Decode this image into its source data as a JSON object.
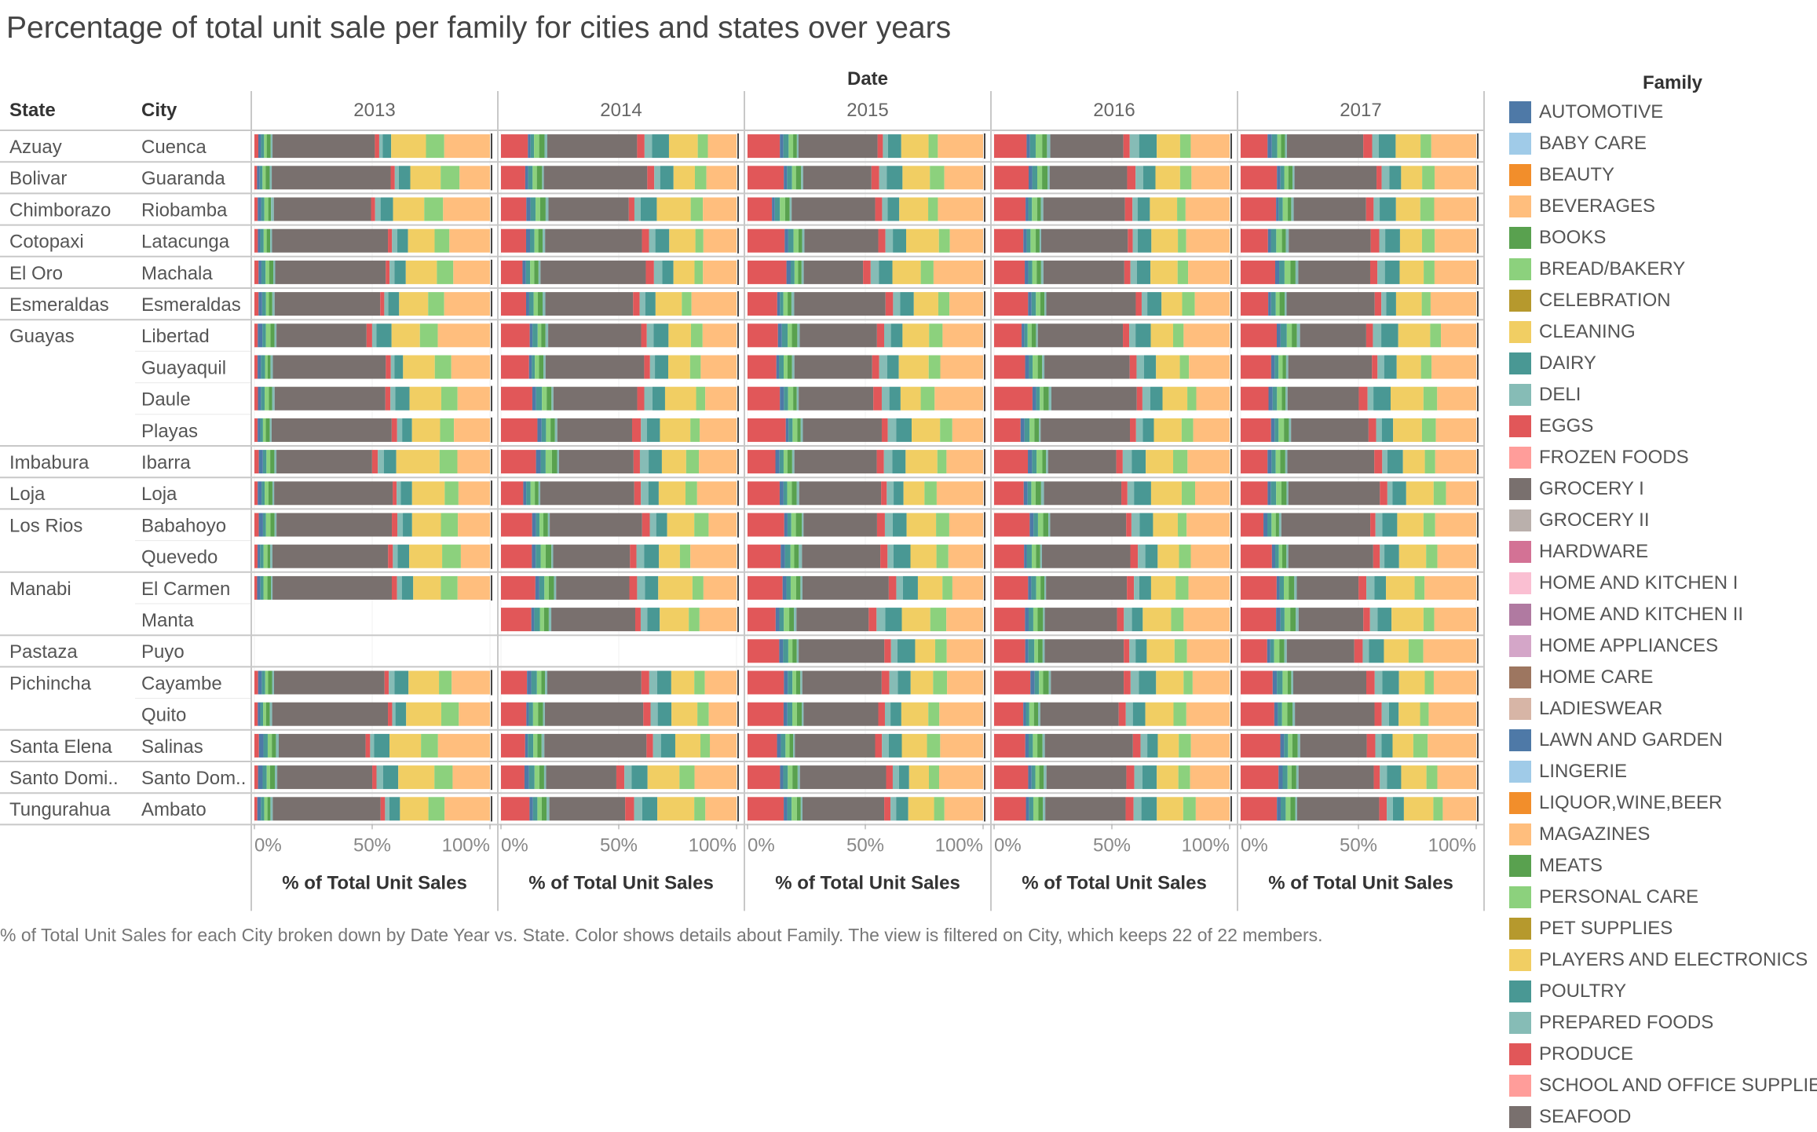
{
  "title": "Percentage of total unit sale per family for cities and states over years",
  "caption": "% of Total Unit Sales for each City broken down by Date Year vs. State.  Color shows details about Family. The view is filtered on City, which keeps 22 of 22 members.",
  "headers": {
    "column_group": "Date",
    "state": "State",
    "city": "City",
    "legend_title": "Family"
  },
  "chart_data": {
    "type": "bar",
    "stacked": "percent",
    "orientation": "horizontal",
    "title": "Percentage of total unit sale per family for cities and states over years",
    "xlabel": "% of Total Unit Sales",
    "xlim": [
      0,
      100
    ],
    "x_ticks": [
      "0%",
      "50%",
      "100%"
    ],
    "years": [
      "2013",
      "2014",
      "2015",
      "2016",
      "2017"
    ],
    "state_groups": [
      {
        "state": "Azuay",
        "cities": [
          "Cuenca"
        ]
      },
      {
        "state": "Bolivar",
        "cities": [
          "Guaranda"
        ]
      },
      {
        "state": "Chimborazo",
        "cities": [
          "Riobamba"
        ]
      },
      {
        "state": "Cotopaxi",
        "cities": [
          "Latacunga"
        ]
      },
      {
        "state": "El Oro",
        "cities": [
          "Machala"
        ]
      },
      {
        "state": "Esmeraldas",
        "cities": [
          "Esmeraldas"
        ]
      },
      {
        "state": "Guayas",
        "cities": [
          "Libertad",
          "Guayaquil",
          "Daule",
          "Playas"
        ]
      },
      {
        "state": "Imbabura",
        "cities": [
          "Ibarra"
        ]
      },
      {
        "state": "Loja",
        "cities": [
          "Loja"
        ]
      },
      {
        "state": "Los Rios",
        "cities": [
          "Babahoyo",
          "Quevedo"
        ]
      },
      {
        "state": "Manabi",
        "cities": [
          "El Carmen",
          "Manta"
        ]
      },
      {
        "state": "Pastaza",
        "cities": [
          "Puyo"
        ]
      },
      {
        "state": "Pichincha",
        "cities": [
          "Cayambe",
          "Quito"
        ]
      },
      {
        "state": "Santa Elena",
        "cities": [
          "Salinas"
        ]
      },
      {
        "state": "Santo Domi..",
        "cities": [
          "Santo Dom.."
        ]
      },
      {
        "state": "Tungurahua",
        "cities": [
          "Ambato"
        ]
      }
    ],
    "segment_families": [
      "PRODUCE",
      "AUTOMOTIVE",
      "POULTRY",
      "BREAD/BAKERY",
      "MEATS",
      "DELI",
      "GROCERY I",
      "EGGS",
      "PREPARED FOODS",
      "DAIRY",
      "CLEANING",
      "PERSONAL CARE",
      "BEVERAGES"
    ],
    "base_profile_2013": [
      1.5,
      1.5,
      1.5,
      1.5,
      1.5,
      1.0,
      46,
      2,
      2,
      5,
      14,
      7,
      17
    ],
    "base_profile_2014": [
      12,
      1.5,
      2,
      2,
      2,
      1.0,
      38,
      3,
      3,
      6,
      12,
      5,
      16
    ],
    "base_profile_2015_2017": [
      14,
      1.5,
      2,
      2,
      2,
      1.0,
      34,
      3,
      3,
      6,
      11,
      5,
      18
    ],
    "missing": [
      {
        "city": "Manta",
        "year": "2013"
      },
      {
        "city": "Puyo",
        "year": "2013"
      },
      {
        "city": "Puyo",
        "year": "2014"
      }
    ],
    "legend": [
      {
        "name": "AUTOMOTIVE",
        "color": "#4e79a7"
      },
      {
        "name": "BABY CARE",
        "color": "#a0cbe8"
      },
      {
        "name": "BEAUTY",
        "color": "#f28e2b"
      },
      {
        "name": "BEVERAGES",
        "color": "#ffbe7d"
      },
      {
        "name": "BOOKS",
        "color": "#59a14f"
      },
      {
        "name": "BREAD/BAKERY",
        "color": "#8cd17d"
      },
      {
        "name": "CELEBRATION",
        "color": "#b6992d"
      },
      {
        "name": "CLEANING",
        "color": "#f1ce63"
      },
      {
        "name": "DAIRY",
        "color": "#499894"
      },
      {
        "name": "DELI",
        "color": "#86bcb6"
      },
      {
        "name": "EGGS",
        "color": "#e15759"
      },
      {
        "name": "FROZEN FOODS",
        "color": "#ff9d9a"
      },
      {
        "name": "GROCERY I",
        "color": "#79706e"
      },
      {
        "name": "GROCERY II",
        "color": "#bab0ac"
      },
      {
        "name": "HARDWARE",
        "color": "#d37295"
      },
      {
        "name": "HOME AND KITCHEN I",
        "color": "#fabfd2"
      },
      {
        "name": "HOME AND KITCHEN II",
        "color": "#b07aa1"
      },
      {
        "name": "HOME APPLIANCES",
        "color": "#d4a6c8"
      },
      {
        "name": "HOME CARE",
        "color": "#9d7660"
      },
      {
        "name": "LADIESWEAR",
        "color": "#d7b5a6"
      },
      {
        "name": "LAWN AND GARDEN",
        "color": "#4e79a7"
      },
      {
        "name": "LINGERIE",
        "color": "#a0cbe8"
      },
      {
        "name": "LIQUOR,WINE,BEER",
        "color": "#f28e2b"
      },
      {
        "name": "MAGAZINES",
        "color": "#ffbe7d"
      },
      {
        "name": "MEATS",
        "color": "#59a14f"
      },
      {
        "name": "PERSONAL CARE",
        "color": "#8cd17d"
      },
      {
        "name": "PET SUPPLIES",
        "color": "#b6992d"
      },
      {
        "name": "PLAYERS AND ELECTRONICS",
        "color": "#f1ce63"
      },
      {
        "name": "POULTRY",
        "color": "#499894"
      },
      {
        "name": "PREPARED FOODS",
        "color": "#86bcb6"
      },
      {
        "name": "PRODUCE",
        "color": "#e15759"
      },
      {
        "name": "SCHOOL AND OFFICE SUPPLIES",
        "color": "#ff9d9a"
      },
      {
        "name": "SEAFOOD",
        "color": "#79706e"
      }
    ]
  }
}
